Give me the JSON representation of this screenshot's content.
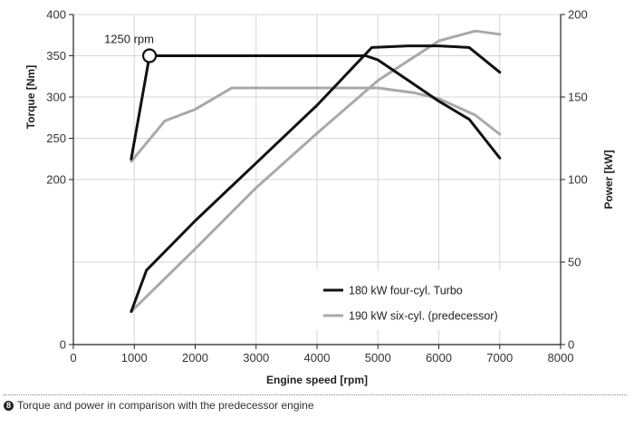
{
  "chart_data": {
    "type": "line",
    "xlabel": "Engine speed [rpm]",
    "ylabel_left": "Torque [Nm]",
    "ylabel_right": "Power [kW]",
    "xlim": [
      0,
      8000
    ],
    "xticks": [
      0,
      1000,
      2000,
      3000,
      4000,
      5000,
      6000,
      7000,
      8000
    ],
    "torque_axis": {
      "ylim": [
        0,
        400
      ],
      "ticks": [
        0,
        200,
        250,
        300,
        350,
        400
      ]
    },
    "power_axis": {
      "ylim": [
        0,
        200
      ],
      "ticks": [
        0,
        50,
        100,
        150,
        200
      ]
    },
    "grid": true,
    "legend_position": "bottom-right",
    "annotation": {
      "text": "1250 rpm",
      "x": 1250,
      "y": 350
    },
    "series": [
      {
        "name": "180 kW four-cyl. Turbo",
        "color": "#111111",
        "torque": [
          [
            950,
            225
          ],
          [
            1250,
            350
          ],
          [
            4800,
            350
          ],
          [
            5000,
            345
          ],
          [
            5500,
            320
          ],
          [
            6000,
            295
          ],
          [
            6500,
            273
          ],
          [
            7000,
            226
          ]
        ],
        "power": [
          [
            950,
            20
          ],
          [
            1200,
            45
          ],
          [
            2000,
            75
          ],
          [
            3000,
            110
          ],
          [
            4000,
            145
          ],
          [
            4900,
            180
          ],
          [
            5500,
            181
          ],
          [
            6000,
            181
          ],
          [
            6500,
            180
          ],
          [
            7000,
            165
          ]
        ]
      },
      {
        "name": "190 kW six-cyl. (predecessor)",
        "color": "#a9a9a9",
        "torque": [
          [
            950,
            222
          ],
          [
            1500,
            271
          ],
          [
            2000,
            285
          ],
          [
            2600,
            311
          ],
          [
            5000,
            311
          ],
          [
            5600,
            305
          ],
          [
            6000,
            298
          ],
          [
            6600,
            278
          ],
          [
            7000,
            255
          ]
        ],
        "power": [
          [
            950,
            20
          ],
          [
            2000,
            58
          ],
          [
            3000,
            95
          ],
          [
            4000,
            128
          ],
          [
            5000,
            160
          ],
          [
            6000,
            184
          ],
          [
            6600,
            190
          ],
          [
            7000,
            188
          ]
        ]
      }
    ]
  },
  "caption": {
    "number": "8",
    "text": "Torque and power in comparison with the predecessor engine"
  }
}
